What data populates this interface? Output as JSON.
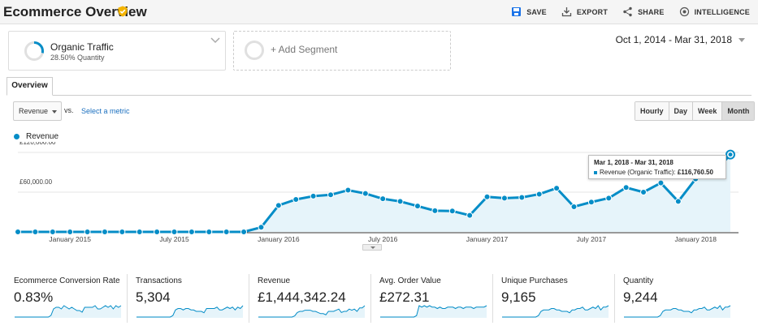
{
  "header": {
    "title": "Ecommerce Overview",
    "actions": [
      {
        "label": "SAVE",
        "icon": "save-icon"
      },
      {
        "label": "EXPORT",
        "icon": "export-icon"
      },
      {
        "label": "SHARE",
        "icon": "share-icon"
      },
      {
        "label": "INTELLIGENCE",
        "icon": "intelligence-icon"
      }
    ]
  },
  "segments": {
    "primary": {
      "name": "Organic Traffic",
      "subtitle": "28.50% Quantity",
      "percent": 0.285
    },
    "add_label": "+ Add Segment"
  },
  "date_range": "Oct 1, 2014 - Mar 31, 2018",
  "tabs": [
    "Overview"
  ],
  "controls": {
    "metric": "Revenue",
    "vs": "vs.",
    "select_metric": "Select a metric",
    "periods": [
      "Hourly",
      "Day",
      "Week",
      "Month"
    ],
    "active_period": "Month"
  },
  "colors": {
    "series": "#058dc7",
    "fill": "#e6f4fa"
  },
  "chart_data": {
    "type": "line",
    "series": [
      {
        "name": "Revenue",
        "x": [
          "Oct 2014",
          "Nov 2014",
          "Dec 2014",
          "Jan 2015",
          "Feb 2015",
          "Mar 2015",
          "Apr 2015",
          "May 2015",
          "Jun 2015",
          "Jul 2015",
          "Aug 2015",
          "Sep 2015",
          "Oct 2015",
          "Nov 2015",
          "Dec 2015",
          "Jan 2016",
          "Feb 2016",
          "Mar 2016",
          "Apr 2016",
          "May 2016",
          "Jun 2016",
          "Jul 2016",
          "Aug 2016",
          "Sep 2016",
          "Oct 2016",
          "Nov 2016",
          "Dec 2016",
          "Jan 2017",
          "Feb 2017",
          "Mar 2017",
          "Apr 2017",
          "May 2017",
          "Jun 2017",
          "Jul 2017",
          "Aug 2017",
          "Sep 2017",
          "Oct 2017",
          "Nov 2017",
          "Dec 2017",
          "Jan 2018",
          "Feb 2018",
          "Mar 2018"
        ],
        "values": [
          0,
          0,
          0,
          0,
          0,
          0,
          0,
          0,
          0,
          0,
          0,
          0,
          0,
          0,
          7000,
          40000,
          49000,
          54000,
          56000,
          63000,
          58000,
          50000,
          46000,
          39000,
          32000,
          31500,
          25000,
          53000,
          51000,
          52000,
          57000,
          66000,
          38000,
          45000,
          51000,
          67000,
          60000,
          74000,
          46000,
          80000,
          88000,
          116760.5
        ]
      }
    ],
    "yticks": [
      "£120,000.00",
      "£60,000.00"
    ],
    "ytick_values": [
      120000,
      60000
    ],
    "xticks": [
      "January 2015",
      "July 2015",
      "January 2016",
      "July 2016",
      "January 2017",
      "July 2017",
      "January 2018"
    ],
    "ylim": [
      0,
      120000
    ],
    "legend": "top-left",
    "grid": true
  },
  "tooltip": {
    "date": "Mar 1, 2018 - Mar 31, 2018",
    "label": "Revenue (Organic Traffic):",
    "value": "£116,760.50"
  },
  "scorecards": [
    {
      "label": "Ecommerce Conversion Rate",
      "value": "0.83%",
      "spark": [
        0,
        0,
        0,
        0,
        0,
        0,
        0,
        0,
        0,
        0,
        0,
        0,
        0,
        0,
        1,
        5,
        6,
        6,
        5,
        7,
        6,
        5,
        6,
        5,
        4,
        4,
        3,
        6,
        6,
        6,
        6,
        7,
        5,
        5,
        6,
        7,
        6,
        7,
        5,
        7,
        6,
        7
      ]
    },
    {
      "label": "Transactions",
      "value": "5,304",
      "spark": [
        0,
        0,
        0,
        0,
        0,
        0,
        0,
        0,
        0,
        0,
        0,
        0,
        0,
        0,
        1,
        5,
        6,
        6,
        5,
        6,
        6,
        5,
        5,
        4,
        4,
        4,
        3,
        6,
        6,
        6,
        6,
        7,
        5,
        5,
        6,
        7,
        6,
        7,
        5,
        7,
        6,
        8
      ]
    },
    {
      "label": "Revenue",
      "value": "£1,444,342.24",
      "spark": [
        0,
        0,
        0,
        0,
        0,
        0,
        0,
        0,
        0,
        0,
        0,
        0,
        0,
        0,
        1,
        4,
        5,
        5,
        6,
        6,
        6,
        5,
        5,
        4,
        3,
        3,
        2,
        5,
        5,
        5,
        6,
        7,
        4,
        5,
        5,
        7,
        6,
        7,
        5,
        8,
        8,
        10
      ]
    },
    {
      "label": "Avg. Order Value",
      "value": "£272.31",
      "spark": [
        0,
        0,
        0,
        0,
        0,
        0,
        0,
        0,
        0,
        0,
        0,
        0,
        0,
        0,
        1,
        8,
        7,
        8,
        7,
        8,
        7,
        7,
        6,
        7,
        6,
        6,
        7,
        7,
        7,
        6,
        7,
        7,
        6,
        7,
        7,
        7,
        6,
        7,
        7,
        7,
        7,
        8
      ]
    },
    {
      "label": "Unique Purchases",
      "value": "9,165",
      "spark": [
        0,
        0,
        0,
        0,
        0,
        0,
        0,
        0,
        0,
        0,
        0,
        0,
        0,
        0,
        1,
        4,
        5,
        5,
        5,
        6,
        6,
        5,
        5,
        4,
        4,
        4,
        3,
        5,
        5,
        6,
        6,
        7,
        5,
        5,
        6,
        7,
        6,
        8,
        5,
        7,
        7,
        8
      ]
    },
    {
      "label": "Quantity",
      "value": "9,244",
      "spark": [
        0,
        0,
        0,
        0,
        0,
        0,
        0,
        0,
        0,
        0,
        0,
        0,
        0,
        0,
        1,
        4,
        5,
        5,
        5,
        6,
        6,
        5,
        5,
        4,
        4,
        4,
        3,
        5,
        5,
        6,
        6,
        7,
        5,
        5,
        6,
        7,
        6,
        8,
        5,
        7,
        7,
        8
      ]
    }
  ]
}
